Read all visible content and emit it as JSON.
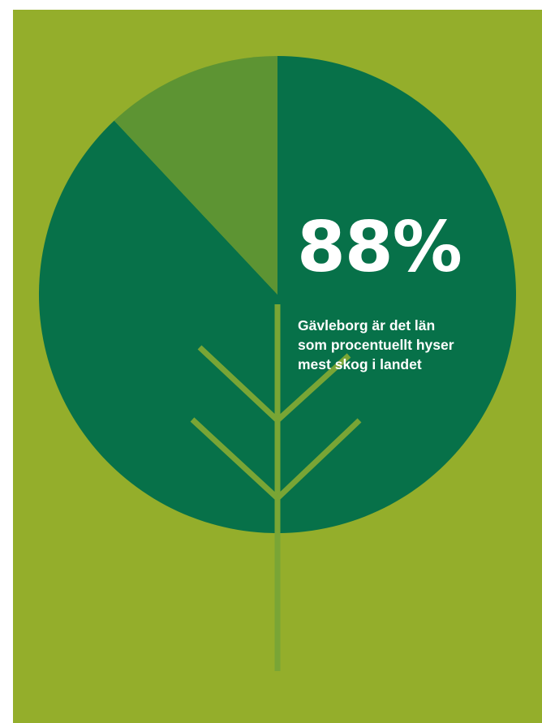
{
  "colors": {
    "background": "#94ae2b",
    "forest_slice": "#077149",
    "other_slice": "#5d9433",
    "stem": "#79a535",
    "text": "#ffffff"
  },
  "headline": {
    "value": "88%",
    "caption": "Gävleborg är det län\nsom procentuellt hyser\nmest skog i landet"
  },
  "chart_data": {
    "type": "pie",
    "title": "",
    "slices": [
      {
        "label": "",
        "value": 88,
        "color": "#077149"
      },
      {
        "label": "",
        "value": 12,
        "color": "#5d9433"
      }
    ],
    "start_angle_deg": 0,
    "direction": "clockwise",
    "legend": "none"
  }
}
